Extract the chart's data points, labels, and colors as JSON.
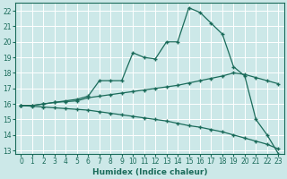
{
  "line1_x": [
    0,
    1,
    2,
    3,
    4,
    5,
    6,
    7,
    8,
    9,
    10,
    11,
    12,
    13,
    14,
    15,
    16,
    17,
    18,
    19,
    20,
    21,
    22,
    23
  ],
  "line1_y": [
    15.9,
    15.9,
    16.0,
    16.1,
    16.2,
    16.3,
    16.5,
    17.5,
    17.5,
    17.5,
    19.3,
    19.0,
    18.9,
    20.0,
    20.0,
    22.2,
    21.9,
    21.2,
    20.5,
    18.4,
    17.8,
    15.0,
    14.0,
    12.8
  ],
  "line2_x": [
    0,
    1,
    2,
    3,
    4,
    5,
    6,
    7,
    8,
    9,
    10,
    11,
    12,
    13,
    14,
    15,
    16,
    17,
    18,
    19,
    20,
    21,
    22,
    23
  ],
  "line2_y": [
    15.9,
    15.9,
    16.0,
    16.1,
    16.15,
    16.2,
    16.4,
    16.5,
    16.6,
    16.7,
    16.8,
    16.9,
    17.0,
    17.1,
    17.2,
    17.35,
    17.5,
    17.65,
    17.8,
    18.0,
    17.9,
    17.7,
    17.5,
    17.3
  ],
  "line3_x": [
    0,
    1,
    2,
    3,
    4,
    5,
    6,
    7,
    8,
    9,
    10,
    11,
    12,
    13,
    14,
    15,
    16,
    17,
    18,
    19,
    20,
    21,
    22,
    23
  ],
  "line3_y": [
    15.9,
    15.85,
    15.8,
    15.75,
    15.7,
    15.65,
    15.6,
    15.5,
    15.4,
    15.3,
    15.2,
    15.1,
    15.0,
    14.9,
    14.75,
    14.6,
    14.5,
    14.35,
    14.2,
    14.0,
    13.8,
    13.6,
    13.4,
    13.1
  ],
  "line_color": "#1a6b5a",
  "bg_color": "#cce8e8",
  "grid_color": "#b8d8d8",
  "xlabel": "Humidex (Indice chaleur)",
  "xlim": [
    -0.5,
    23.5
  ],
  "ylim": [
    12.8,
    22.5
  ],
  "xticks": [
    0,
    1,
    2,
    3,
    4,
    5,
    6,
    7,
    8,
    9,
    10,
    11,
    12,
    13,
    14,
    15,
    16,
    17,
    18,
    19,
    20,
    21,
    22,
    23
  ],
  "yticks": [
    13,
    14,
    15,
    16,
    17,
    18,
    19,
    20,
    21,
    22
  ],
  "label_fontsize": 6.5,
  "tick_fontsize": 5.5
}
